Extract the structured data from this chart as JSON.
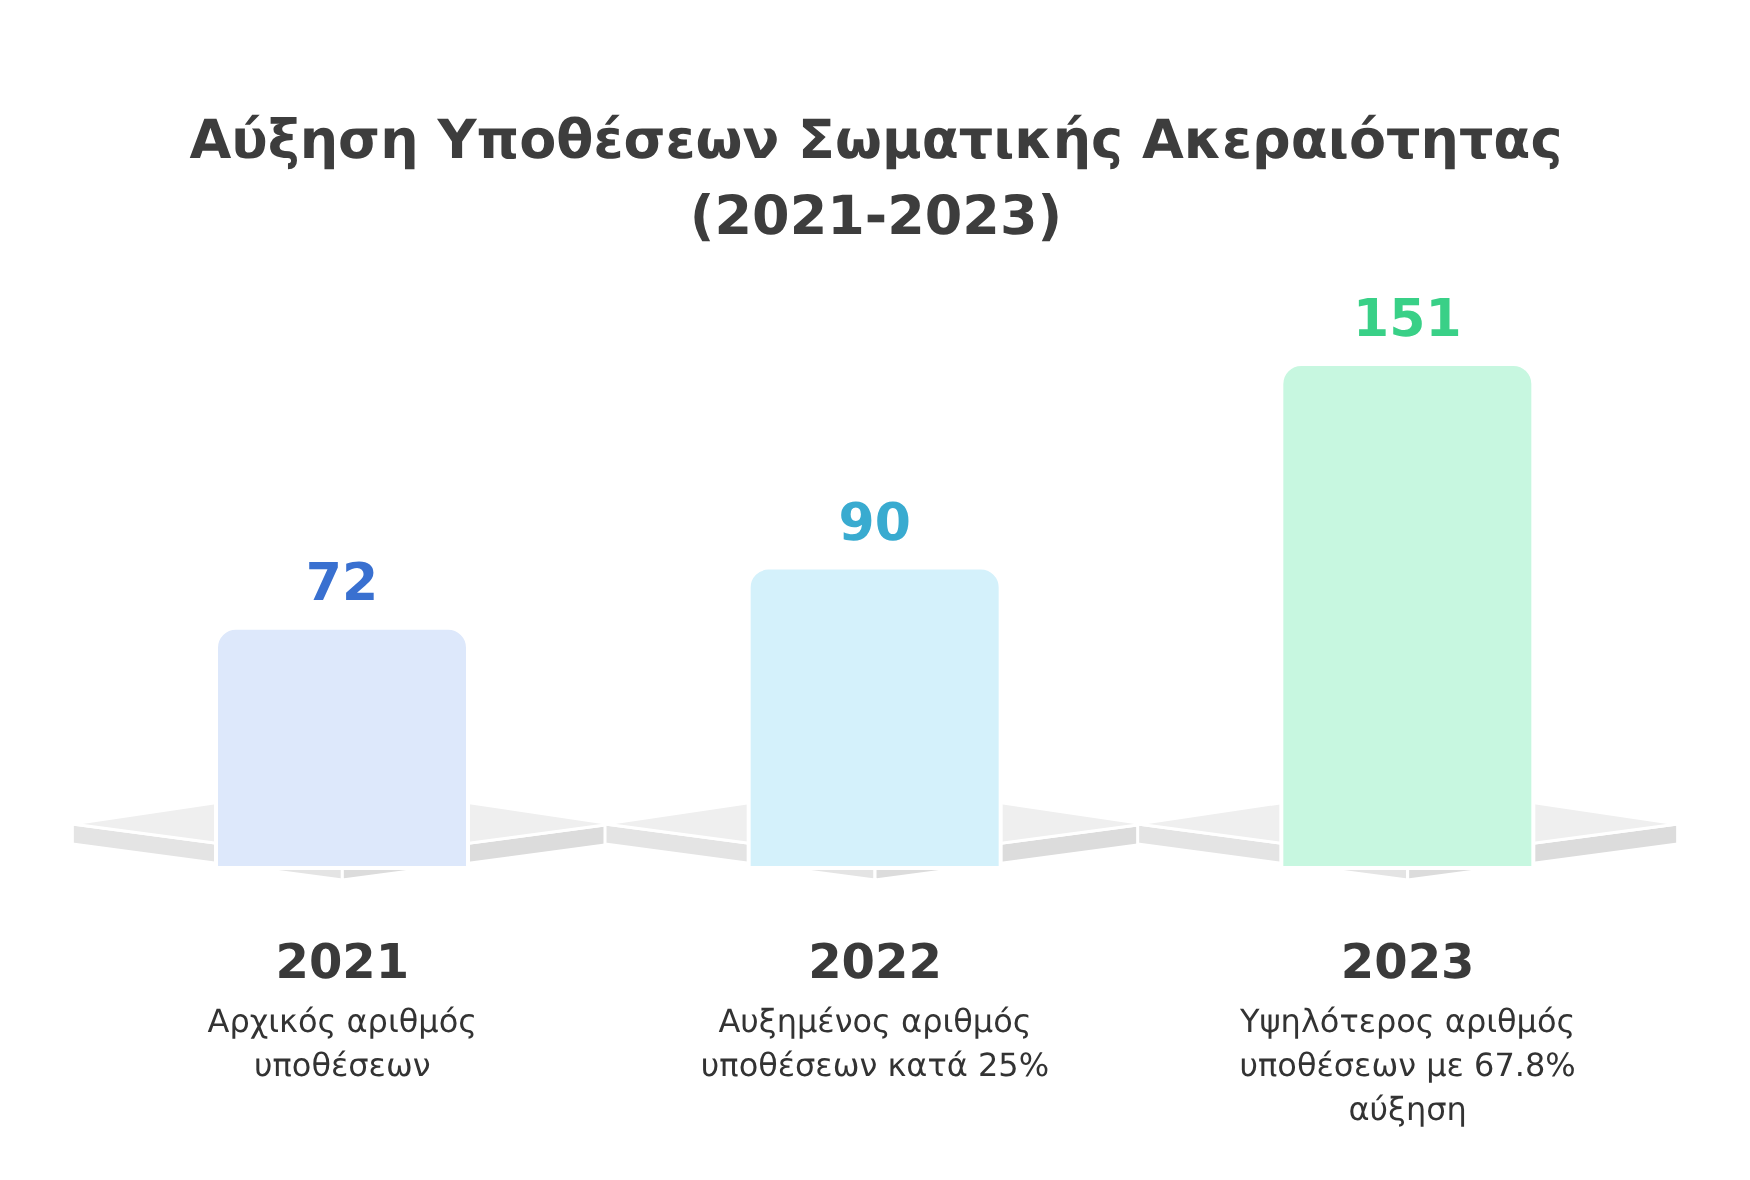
{
  "chart_data": {
    "type": "bar",
    "title": "Αύξηση Υποθέσεων Σωματικής Ακεραιότητας (2021-2023)",
    "categories": [
      "2021",
      "2022",
      "2023"
    ],
    "values": [
      72,
      90,
      151
    ],
    "colors": [
      "#dde8fb",
      "#d4f1fb",
      "#c7f7e0"
    ],
    "data_labels": true,
    "annotations": [
      "Αρχικός αριθμός υποθέσεων",
      "Αυξημένος αριθμός υποθέσεων κατά 25%",
      "Υψηλότερος αριθμός υποθέσεων με 67.8% αύξηση"
    ]
  }
}
